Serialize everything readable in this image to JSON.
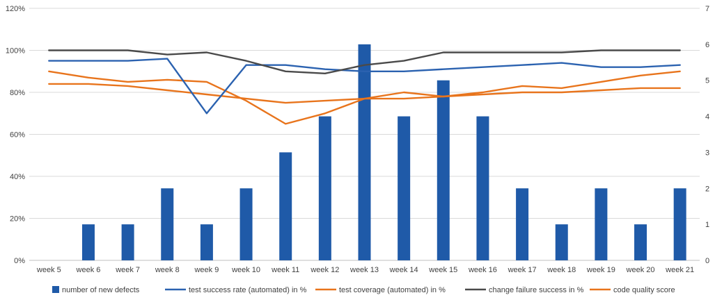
{
  "chart_data": {
    "type": "bar+line",
    "title": "",
    "categories": [
      "week 5",
      "week 6",
      "week 7",
      "week 8",
      "week 9",
      "week 10",
      "week 11",
      "week 12",
      "week 13",
      "week 14",
      "week 15",
      "week 16",
      "week 17",
      "week 18",
      "week 19",
      "week 20",
      "week 21"
    ],
    "left_axis": {
      "min": 0,
      "max": 1.2,
      "step": 0.2,
      "tick_labels": [
        "0%",
        "20%",
        "40%",
        "60%",
        "80%",
        "100%",
        "120%"
      ]
    },
    "right_axis": {
      "min": 0,
      "max": 7,
      "step": 1,
      "tick_labels": [
        "0",
        "1",
        "2",
        "3",
        "4",
        "5",
        "6",
        "7"
      ]
    },
    "grid": true,
    "legend_position": "bottom",
    "series": [
      {
        "name": "number of new defects",
        "kind": "bar",
        "axis": "right",
        "color": "#1f5aa8",
        "values": [
          0,
          1,
          1,
          2,
          1,
          2,
          3,
          4,
          6,
          4,
          5,
          4,
          2,
          1,
          2,
          1,
          2
        ]
      },
      {
        "name": "test success rate (automated) in %",
        "kind": "line",
        "axis": "left",
        "color": "#2b62b0",
        "values": [
          0.95,
          0.95,
          0.95,
          0.96,
          0.7,
          0.93,
          0.93,
          0.91,
          0.9,
          0.9,
          0.91,
          0.92,
          0.93,
          0.94,
          0.92,
          0.92,
          0.93
        ]
      },
      {
        "name": "test coverage (automated) in %",
        "kind": "line",
        "axis": "left",
        "color": "#e8741c",
        "values": [
          0.9,
          0.87,
          0.85,
          0.86,
          0.85,
          0.76,
          0.65,
          0.7,
          0.77,
          0.8,
          0.78,
          0.8,
          0.83,
          0.82,
          0.85,
          0.88,
          0.9
        ]
      },
      {
        "name": "change failure success in %",
        "kind": "line",
        "axis": "left",
        "color": "#4a4a4a",
        "values": [
          1.0,
          1.0,
          1.0,
          0.98,
          0.99,
          0.95,
          0.9,
          0.89,
          0.93,
          0.95,
          0.99,
          0.99,
          0.99,
          0.99,
          1.0,
          1.0,
          1.0
        ]
      },
      {
        "name": "code quality score",
        "kind": "line",
        "axis": "left",
        "color": "#e8741c",
        "values": [
          0.84,
          0.84,
          0.83,
          0.81,
          0.79,
          0.77,
          0.75,
          0.76,
          0.77,
          0.77,
          0.78,
          0.79,
          0.8,
          0.8,
          0.81,
          0.82,
          0.82
        ]
      }
    ]
  }
}
